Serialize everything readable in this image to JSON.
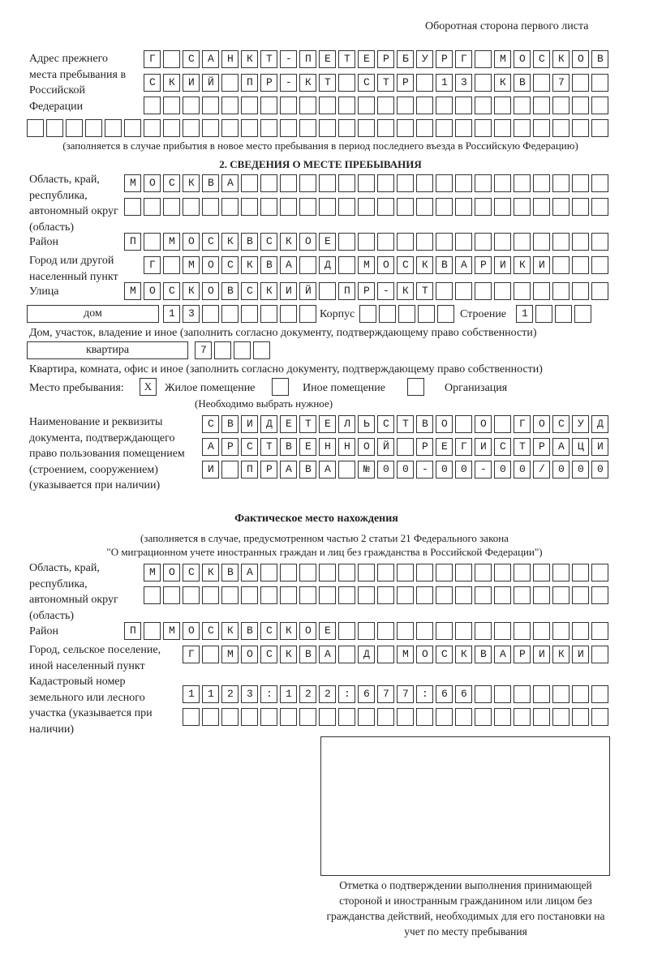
{
  "header": {
    "side_note": "Оборотная сторона первого листа"
  },
  "previous_address": {
    "label": "Адрес прежнего места пребывания в Российской Федерации",
    "rows": [
      "Г САНКТ-ПЕТЕРБУРГ МОСКОВ",
      "СКИЙ ПР-КТ СТР 13 КВ 7  ",
      "",
      ""
    ],
    "note": "(заполняется в случае прибытия в новое место пребывания в период последнего въезда в Российскую Федерацию)"
  },
  "section2": {
    "title": "2. СВЕДЕНИЯ О МЕСТЕ ПРЕБЫВАНИЯ",
    "region_label": "Область, край, республика, автономный округ (область)",
    "region_rows": [
      "МОСКВА",
      ""
    ],
    "district_label": "Район",
    "district": "П МОСКВСКОЕ",
    "city_label": "Город или другой населенный пункт",
    "city": "Г МОСКВА Д МОСКВАРИКИ",
    "street_label": "Улица",
    "street": "МОСКОВСКИЙ ПР-КТ",
    "house_type": "дом",
    "house": "13",
    "korpus_label": "Корпус",
    "korpus": "",
    "building_label": "Строение",
    "building": "1",
    "house_note": "Дом, участок, владение и иное (заполнить согласно документу, подтверждающему право собственности)",
    "flat_type": "квартира",
    "flat": "7",
    "flat_note": "Квартира, комната, офис и иное (заполнить согласно документу, подтверждающему право собственности)",
    "stay_label": "Место пребывания:",
    "options": [
      {
        "label": "Жилое помещение",
        "mark": "Х"
      },
      {
        "label": "Иное помещение",
        "mark": ""
      },
      {
        "label": "Организация",
        "mark": ""
      }
    ],
    "choose_note": "(Необходимо выбрать нужное)",
    "doc_label": "Наименование и реквизиты документа, подтверждающего право пользования помещением (строением, сооружением) (указывается при наличии)",
    "doc_rows": [
      "СВИДЕТЕЛЬСТВО О ГОСУД",
      "АРСТВЕННОЙ РЕГИСТРАЦИ",
      "И ПРАВА №00-00-00/000"
    ]
  },
  "actual": {
    "title": "Фактическое место нахождения",
    "note1": "(заполняется в случае, предусмотренном частью 2 статьи 21 Федерального закона",
    "note2": "\"О миграционном учете иностранных граждан и лиц без гражданства в Российской Федерации\")",
    "region_label": "Область, край, республика, автономный округ (область)",
    "region_rows": [
      "МОСКВА",
      ""
    ],
    "district_label": "Район",
    "district": "П МОСКВСКОЕ",
    "city_label": "Город, сельское поселение, иной населенный пункт",
    "city": "Г МОСКВА Д МОСКВАРИКИ",
    "cadastre_label": "Кадастровый номер земельного или лесного участка (указывается при наличии)",
    "cadastre_rows": [
      "1123:122:677:66",
      ""
    ]
  },
  "confirm": {
    "caption": "Отметка о подтверждении выполнения принимающей стороной и иностранным гражданином или лицом без гражданства действий, необходимых для его постановки на учет по месту пребывания"
  }
}
